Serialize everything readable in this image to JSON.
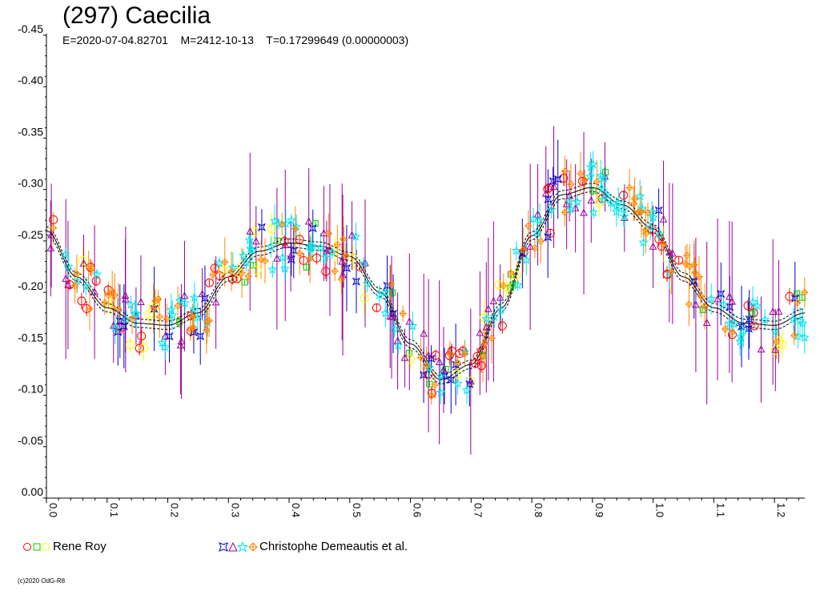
{
  "chart_data": {
    "type": "scatter",
    "title": "(297) Caecilia",
    "subtitle": "E=2020-07-04.82701    M=2412-10-13    T=0.17299649 (0.00000003)",
    "xlabel": "",
    "ylabel": "",
    "xlim": [
      0.0,
      1.25
    ],
    "ylim": [
      -0.45,
      0.0
    ],
    "y_inverted": true,
    "y_ticks": [
      "-0.45",
      "-0.40",
      "-0.35",
      "-0.30",
      "-0.25",
      "-0.20",
      "-0.15",
      "-0.10",
      "-0.05",
      "0.00"
    ],
    "x_ticks": [
      "0.0",
      "0.1",
      "0.2",
      "0.3",
      "0.4",
      "0.5",
      "0.6",
      "0.7",
      "0.8",
      "0.9",
      "1.0",
      "1.1",
      "1.2"
    ],
    "x_tick_values": [
      0.0,
      0.1,
      0.2,
      0.3,
      0.4,
      0.5,
      0.6,
      0.7,
      0.8,
      0.9,
      1.0,
      1.1,
      1.2
    ],
    "y_tick_values": [
      -0.45,
      -0.4,
      -0.35,
      -0.3,
      -0.25,
      -0.2,
      -0.15,
      -0.1,
      -0.05,
      0.0
    ],
    "grid": false,
    "legend_placement": "bottom",
    "fit_curve": {
      "phase": [
        0.0,
        0.05,
        0.1,
        0.15,
        0.2,
        0.25,
        0.3,
        0.35,
        0.4,
        0.45,
        0.5,
        0.55,
        0.6,
        0.65,
        0.7,
        0.75,
        0.8,
        0.85,
        0.9,
        0.95,
        1.0,
        1.05,
        1.1,
        1.15,
        1.2,
        1.25
      ],
      "mag": [
        -0.26,
        -0.215,
        -0.185,
        -0.17,
        -0.168,
        -0.18,
        -0.215,
        -0.24,
        -0.248,
        -0.245,
        -0.235,
        -0.2,
        -0.15,
        -0.115,
        -0.13,
        -0.185,
        -0.255,
        -0.295,
        -0.302,
        -0.285,
        -0.262,
        -0.215,
        -0.185,
        -0.17,
        -0.168,
        -0.18
      ],
      "color": "#000000"
    },
    "series": [
      {
        "legend": "Rene Roy",
        "sub_series": [
          {
            "marker": "circle",
            "color": "#ff0000"
          },
          {
            "marker": "square",
            "color": "#00cc00"
          },
          {
            "marker": "circle",
            "color": "#ffff00"
          }
        ]
      },
      {
        "legend": "Christophe Demeautis et al.",
        "sub_series": [
          {
            "marker": "star4",
            "color": "#0000cc"
          },
          {
            "marker": "triangle",
            "color": "#990099"
          },
          {
            "marker": "star",
            "color": "#00e5ee"
          },
          {
            "marker": "diamond-plus",
            "color": "#ff8800"
          }
        ]
      }
    ]
  },
  "footer": {
    "copyright": "(c)2020 OdG-R8"
  }
}
